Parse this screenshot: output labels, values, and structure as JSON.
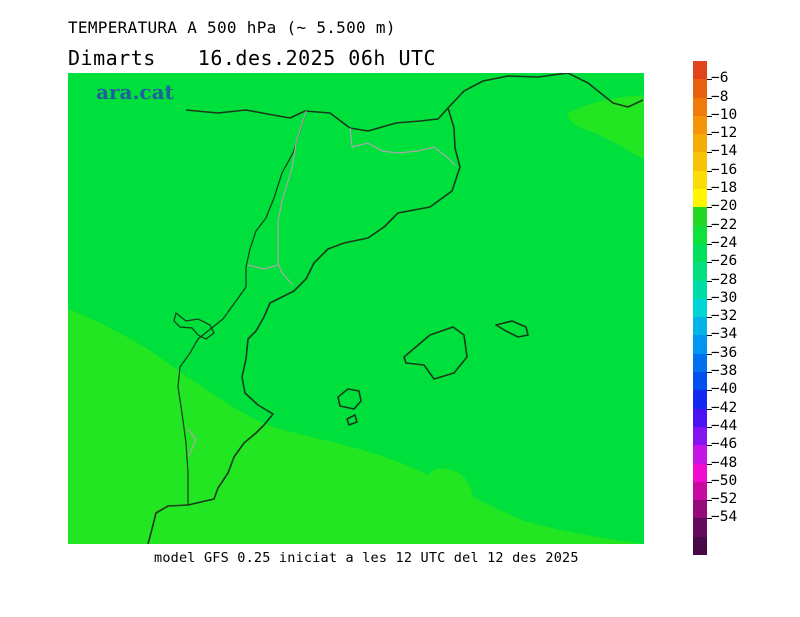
{
  "title": "TEMPERATURA A 500 hPa (~ 5.500 m)",
  "day": "Dimarts",
  "date": "16.des.2025 06h UTC",
  "logo": "ara.cat",
  "footer": "model GFS 0.25 iniciat a les 12 UTC del 12 des 2025",
  "colorbar": {
    "labels": [
      "−6",
      "−8",
      "−10",
      "−12",
      "−14",
      "−16",
      "−18",
      "−20",
      "−22",
      "−24",
      "−26",
      "−28",
      "−30",
      "−32",
      "−34",
      "−36",
      "−38",
      "−40",
      "−42",
      "−44",
      "−46",
      "−48",
      "−50",
      "−52",
      "−54"
    ],
    "colors": [
      "#e2431a",
      "#e9600f",
      "#ef7b0a",
      "#f39409",
      "#f5ac07",
      "#f7c305",
      "#f9dd04",
      "#fff600",
      "#22d824",
      "#0ee03c",
      "#00e05c",
      "#00e080",
      "#00dca8",
      "#00d4d4",
      "#00b4e8",
      "#0096f0",
      "#0070f0",
      "#0050f0",
      "#1428f0",
      "#4a14f0",
      "#8614f0",
      "#c414e6",
      "#f00ad2",
      "#c80aa0",
      "#960a7c",
      "#640a5a",
      "#460a46"
    ]
  },
  "map": {
    "dominant_band": "−22",
    "colors": {
      "band_22_24": "#00e03c",
      "band_20_22": "#22e622",
      "coast": "#1a3a1a",
      "borders": "#a8a8a8"
    }
  }
}
